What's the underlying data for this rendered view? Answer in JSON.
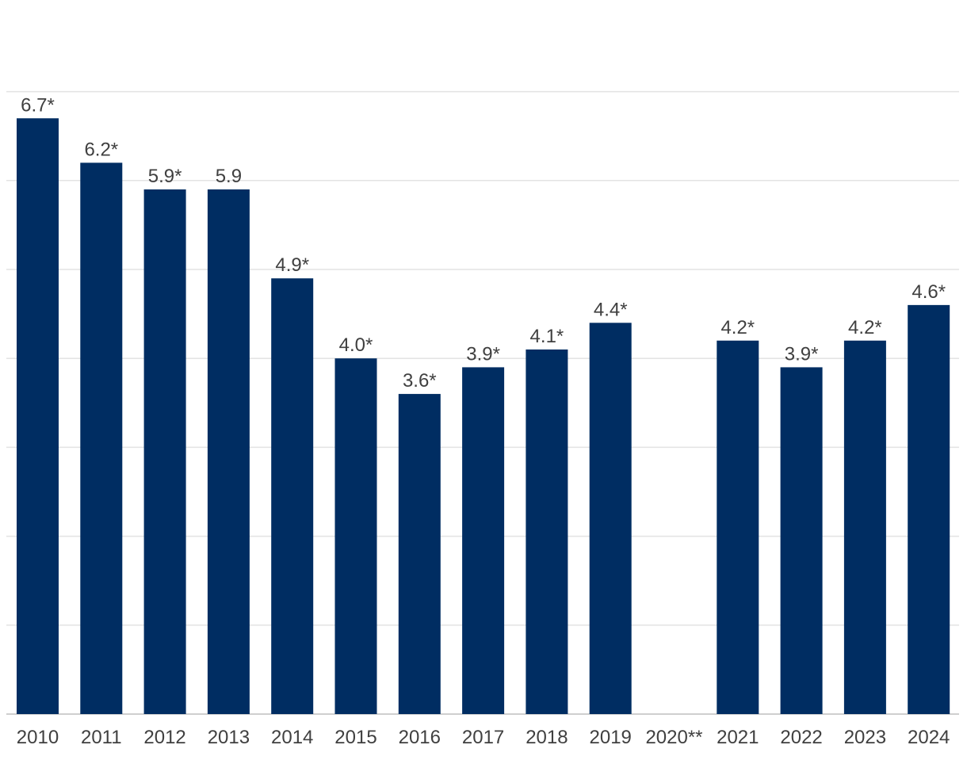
{
  "chart_data": {
    "type": "bar",
    "categories": [
      "2010",
      "2011",
      "2012",
      "2013",
      "2014",
      "2015",
      "2016",
      "2017",
      "2018",
      "2019",
      "2020**",
      "2021",
      "2022",
      "2023",
      "2024"
    ],
    "values": [
      6.7,
      6.2,
      5.9,
      5.9,
      4.9,
      4.0,
      3.6,
      3.9,
      4.1,
      4.4,
      null,
      4.2,
      3.9,
      4.2,
      4.6
    ],
    "data_labels": [
      "6.7*",
      "6.2*",
      "5.9*",
      "5.9",
      "4.9*",
      "4.0*",
      "3.6*",
      "3.9*",
      "4.1*",
      "4.4*",
      "",
      "4.2*",
      "3.9*",
      "4.2*",
      "4.6*"
    ],
    "ylim": [
      0,
      7
    ],
    "grid": true,
    "bar_color": "#002d62",
    "title": "",
    "xlabel": "",
    "ylabel": ""
  }
}
